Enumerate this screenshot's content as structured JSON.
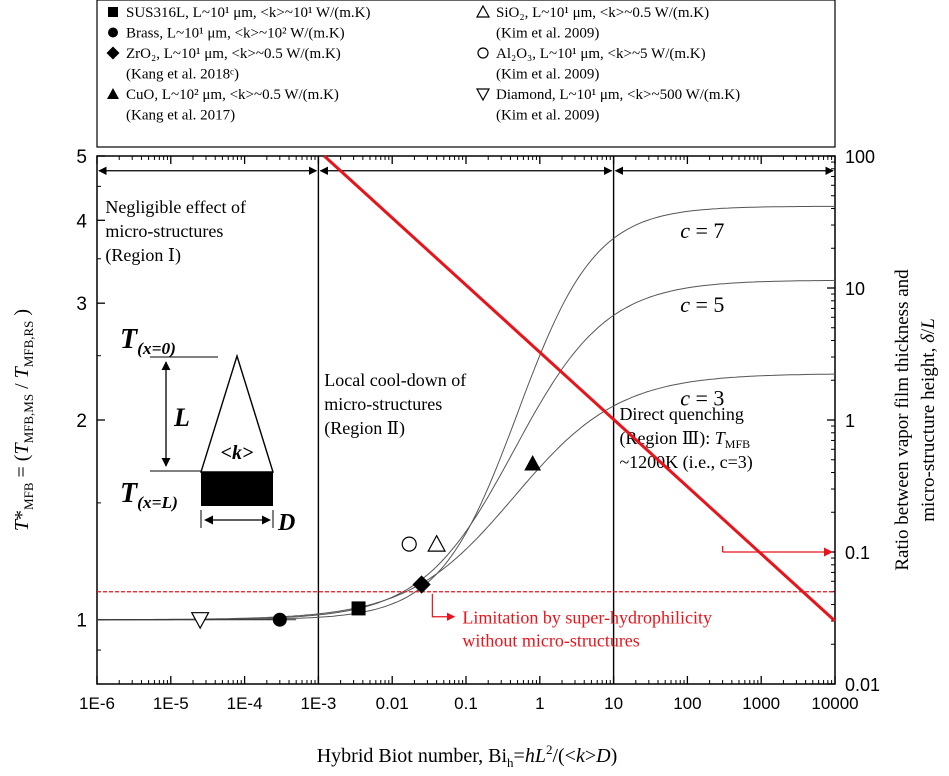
{
  "chart_data": {
    "type": "scatter",
    "xlabel": "Hybrid Biot number, Bi_h=hL^2/(<k>D)",
    "ylabel_left": "T*_MFB = (T_MFB,MS / T_MFB,RS )",
    "ylabel_right_line1": "Ratio between vapor film thickness and",
    "ylabel_right_line2": "micro-structure height, δ/L",
    "x_scale": "log",
    "xlim": [
      1e-06,
      10000
    ],
    "x_ticks": [
      "1E-6",
      "1E-5",
      "1E-4",
      "1E-3",
      "0.01",
      "0.1",
      "1",
      "10",
      "100",
      "1000",
      "10000"
    ],
    "y_left_scale": "log",
    "ylim_left": [
      0.8,
      5
    ],
    "y_left_ticks": [
      "1",
      "2",
      "3",
      "4",
      "5"
    ],
    "y_right_scale": "log",
    "ylim_right": [
      0.01,
      100
    ],
    "y_right_ticks": [
      "0.01",
      "0.1",
      "1",
      "10",
      "100"
    ],
    "legend": [
      {
        "marker": "square-filled",
        "text_main": "SUS316L, L~10¹ μm, <k>~10¹ W/(m.K)",
        "text_ref": ""
      },
      {
        "marker": "circle-filled",
        "text_main": "Brass, L~10¹ μm, <k>~10² W/(m.K)",
        "text_ref": ""
      },
      {
        "marker": "diamond-filled",
        "text_main": "ZrO₂, L~10¹ μm, <k>~0.5 W/(m.K)",
        "text_ref": "(Kang et al. 2018ᶜ)"
      },
      {
        "marker": "triangle-up-filled",
        "text_main": "CuO, L~10² μm, <k>~0.5 W/(m.K)",
        "text_ref": "(Kang et al. 2017)"
      },
      {
        "marker": "triangle-up-open",
        "text_main": "SiO₂, L~10¹ μm, <k>~0.5 W/(m.K)",
        "text_ref": "(Kim et al. 2009)"
      },
      {
        "marker": "circle-open",
        "text_main": "Al₂O₃, L~10¹ μm, <k>~5 W/(m.K)",
        "text_ref": "(Kim et al. 2009)"
      },
      {
        "marker": "triangle-down-open",
        "text_main": "Diamond, L~10¹ μm, <k>~500 W/(m.K)",
        "text_ref": "(Kim et al. 2009)"
      }
    ],
    "points": [
      {
        "name": "Diamond",
        "marker": "triangle-down-open",
        "x": 2.5e-05,
        "y": 1.0
      },
      {
        "name": "Brass",
        "marker": "circle-filled",
        "x": 0.0003,
        "y": 1.0
      },
      {
        "name": "SUS316L",
        "marker": "square-filled",
        "x": 0.0035,
        "y": 1.04
      },
      {
        "name": "Al2O3",
        "marker": "circle-open",
        "x": 0.017,
        "y": 1.3
      },
      {
        "name": "ZrO2",
        "marker": "diamond-filled",
        "x": 0.025,
        "y": 1.13
      },
      {
        "name": "SiO2",
        "marker": "triangle-up-open",
        "x": 0.04,
        "y": 1.3
      },
      {
        "name": "CuO",
        "marker": "triangle-up-filled",
        "x": 0.8,
        "y": 1.72
      }
    ],
    "curves": [
      {
        "label": "c = 7",
        "c": 7,
        "y_max": 4.2,
        "x_mid": 0.5,
        "steep": 1.9
      },
      {
        "label": "c = 5",
        "c": 5,
        "y_max": 3.25,
        "x_mid": 0.45,
        "steep": 1.6
      },
      {
        "label": "c = 3",
        "c": 3,
        "y_max": 2.35,
        "x_mid": 0.45,
        "steep": 1.4
      }
    ],
    "red_line": {
      "x_start": 0.0012,
      "y_start_right": 100,
      "x_end": 10000,
      "y_end_right": 0.03
    },
    "red_dashed_y_right": 0.05,
    "region_boundaries_x": [
      0.001,
      10
    ],
    "regions": [
      {
        "line1": "Negligible effect of",
        "line2": "micro-structures",
        "line3": "(Region Ⅰ)"
      },
      {
        "line1": "Local cool-down of",
        "line2": "micro-structures",
        "line3": "(Region Ⅱ)"
      },
      {
        "line1": "Direct quenching",
        "line2": "(Region Ⅲ): T_MFB",
        "line3": "~1200K (i.e., c=3)"
      }
    ],
    "annotation_red": {
      "line1": "Limitation by super-hydrophilicity",
      "line2": "without micro-structures"
    },
    "inset": {
      "top_label": "T(x=0)",
      "bottom_label": "T(x=L)",
      "length_label": "L",
      "conductivity_label": "<k>",
      "width_label": "D"
    },
    "grid": false,
    "colors": {
      "red": "#e8141b",
      "black": "#000000",
      "gray_curve": "#555555"
    }
  }
}
